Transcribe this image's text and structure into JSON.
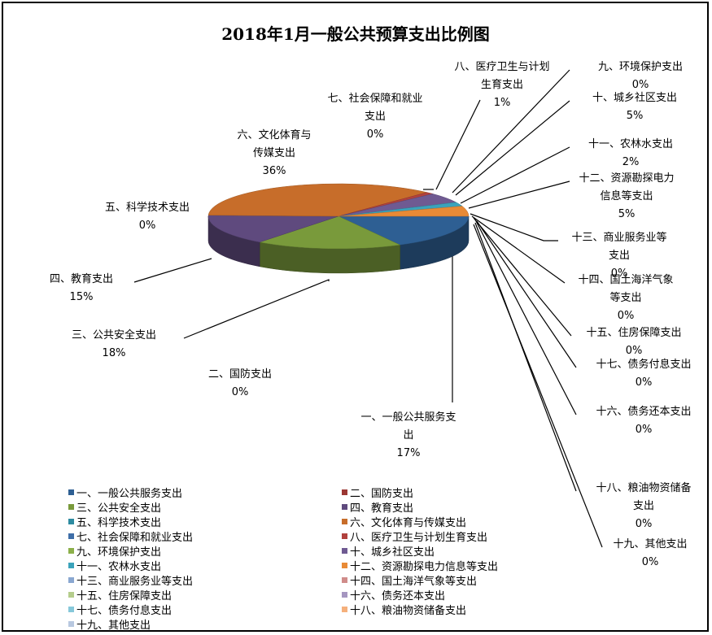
{
  "chart_data": {
    "type": "pie",
    "title": "2018年1月一般公共预算支出比例图",
    "categories": [
      "一、一般公共服务支出",
      "二、国防支出",
      "三、公共安全支出",
      "四、教育支出",
      "五、科学技术支出",
      "六、文化体育与传媒支出",
      "七、社会保障和就业支出",
      "八、医疗卫生与计划生育支出",
      "九、环境保护支出",
      "十、城乡社区支出",
      "十一、农林水支出",
      "十二、资源勘探电力信息等支出",
      "十三、商业服务业等支出",
      "十四、国土海洋气象等支出",
      "十五、住房保障支出",
      "十六、债务还本支出",
      "十七、债务付息支出",
      "十八、粮油物资储备支出",
      "十九、其他支出"
    ],
    "values": [
      17,
      0,
      18,
      15,
      0,
      36,
      0,
      1,
      0,
      5,
      2,
      5,
      0,
      0,
      0,
      0,
      0,
      0,
      0
    ],
    "data_labels": [
      {
        "name": [
          "一、一般公共服务支",
          "出"
        ],
        "pct": "17%"
      },
      {
        "name": [
          "二、国防支出"
        ],
        "pct": "0%"
      },
      {
        "name": [
          "三、公共安全支出"
        ],
        "pct": "18%"
      },
      {
        "name": [
          "四、教育支出"
        ],
        "pct": "15%"
      },
      {
        "name": [
          "五、科学技术支出"
        ],
        "pct": "0%"
      },
      {
        "name": [
          "六、文化体育与",
          "传媒支出"
        ],
        "pct": "36%"
      },
      {
        "name": [
          "七、社会保障和就业",
          "支出"
        ],
        "pct": "0%"
      },
      {
        "name": [
          "八、医疗卫生与计划",
          "生育支出"
        ],
        "pct": "1%"
      },
      {
        "name": [
          "九、环境保护支出"
        ],
        "pct": "0%"
      },
      {
        "name": [
          "十、城乡社区支出"
        ],
        "pct": "5%"
      },
      {
        "name": [
          "十一、农林水支出"
        ],
        "pct": "2%"
      },
      {
        "name": [
          "十二、资源勘探电力",
          "信息等支出"
        ],
        "pct": "5%"
      },
      {
        "name": [
          "十三、商业服务业等",
          "支出"
        ],
        "pct": "0%"
      },
      {
        "name": [
          "十四、国土海洋气象",
          "等支出"
        ],
        "pct": "0%"
      },
      {
        "name": [
          "十五、住房保障支出"
        ],
        "pct": "0%"
      },
      {
        "name": [
          "十六、债务还本支出"
        ],
        "pct": "0%"
      },
      {
        "name": [
          "十七、债务付息支出"
        ],
        "pct": "0%"
      },
      {
        "name": [
          "十八、粮油物资储备",
          "支出"
        ],
        "pct": "0%"
      },
      {
        "name": [
          "十九、其他支出"
        ],
        "pct": "0%"
      }
    ],
    "colors": [
      "#2e5f93",
      "#9b3733",
      "#799a3b",
      "#5f4a7e",
      "#2d8ba1",
      "#c76d2a",
      "#3e6ea8",
      "#b1413d",
      "#8cb04a",
      "#6f5a92",
      "#3ba3bb",
      "#e88a36",
      "#8aa8d1",
      "#d08c8a",
      "#b5cd8c",
      "#a596c0",
      "#86c8da",
      "#f5b07c",
      "#b8c8e0"
    ],
    "style": "3d-exploded-none",
    "legend_position": "bottom"
  }
}
